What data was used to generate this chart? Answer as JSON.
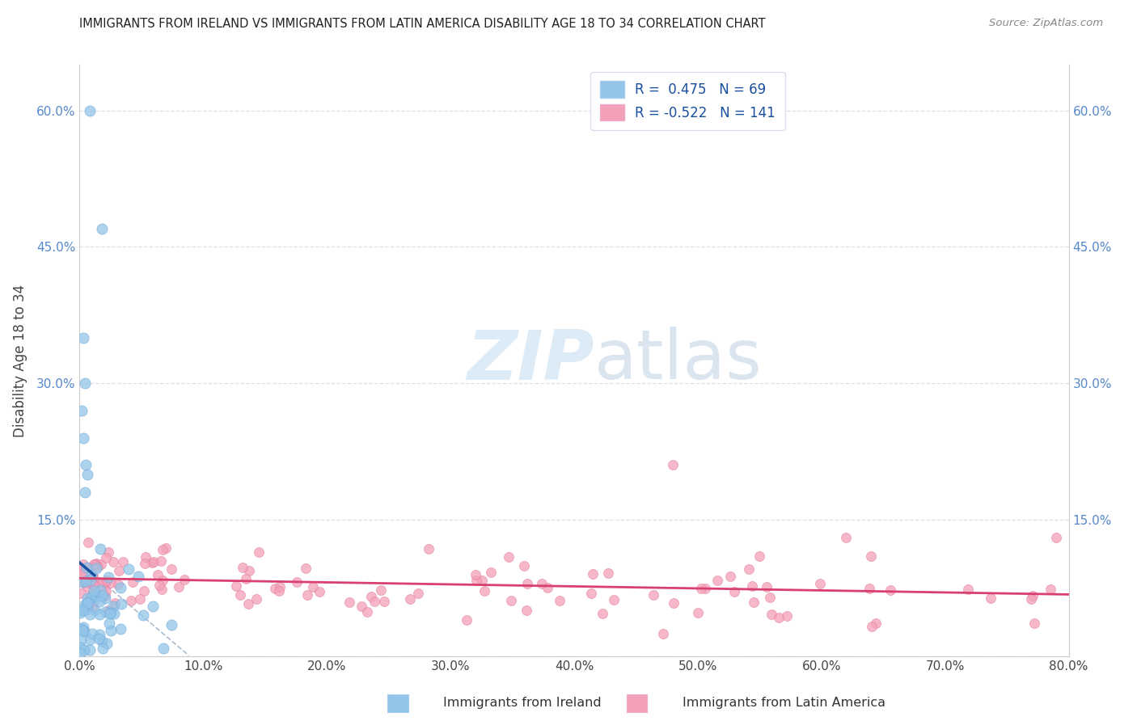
{
  "title": "IMMIGRANTS FROM IRELAND VS IMMIGRANTS FROM LATIN AMERICA DISABILITY AGE 18 TO 34 CORRELATION CHART",
  "source": "Source: ZipAtlas.com",
  "ylabel": "Disability Age 18 to 34",
  "legend1_label": "Immigrants from Ireland",
  "legend2_label": "Immigrants from Latin America",
  "R1": 0.475,
  "N1": 69,
  "R2": -0.522,
  "N2": 141,
  "color_ireland": "#92C5E8",
  "color_ireland_edge": "#70AADD",
  "color_ireland_line": "#1A4FA0",
  "color_latam": "#F4A0B8",
  "color_latam_edge": "#E080A0",
  "color_latam_line": "#D94070",
  "color_dashed": "#AABBCC",
  "xlim": [
    0.0,
    0.8
  ],
  "ylim": [
    0.0,
    0.65
  ],
  "xticks": [
    0.0,
    0.1,
    0.2,
    0.3,
    0.4,
    0.5,
    0.6,
    0.7,
    0.8
  ],
  "xticklabels": [
    "0.0%",
    "10.0%",
    "20.0%",
    "30.0%",
    "40.0%",
    "50.0%",
    "60.0%",
    "70.0%",
    "80.0%"
  ],
  "yticks": [
    0.0,
    0.15,
    0.3,
    0.45,
    0.6
  ],
  "yticklabels": [
    "",
    "15.0%",
    "30.0%",
    "45.0%",
    "60.0%"
  ],
  "watermark_zip": "ZIP",
  "watermark_atlas": "atlas",
  "grid_color": "#DDDDEE",
  "tick_color": "#5588CC"
}
